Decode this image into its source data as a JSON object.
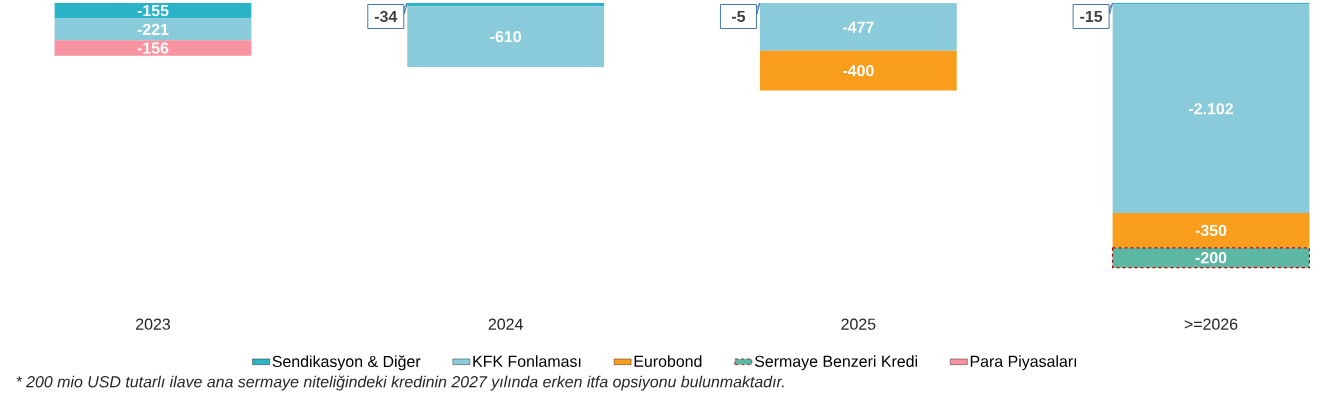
{
  "chart_data": {
    "type": "bar",
    "stacked": true,
    "legend": "bottom",
    "tick_labels": "x",
    "categories": [
      "2023",
      "2024",
      "2025",
      ">=2026"
    ],
    "series": [
      {
        "name": "Sendikasyon & Diğer",
        "color": "#2bb3c7",
        "values": [
          -155,
          -34,
          -5,
          -15
        ],
        "value_labels": [
          "-155",
          "-34",
          "-5",
          "-15"
        ]
      },
      {
        "name": "KFK Fonlaması",
        "color": "#8acbdb",
        "values": [
          -221,
          -610,
          -477,
          -2102
        ],
        "value_labels": [
          "-221",
          "-610",
          "-477",
          "-2.102"
        ]
      },
      {
        "name": "Eurobond",
        "color": "#f99d1c",
        "values": [
          null,
          null,
          -400,
          -350
        ],
        "value_labels": [
          null,
          null,
          "-400",
          "-350"
        ]
      },
      {
        "name": "Sermaye Benzeri Kredi",
        "color": "#5db8a3",
        "line_style": "dashed",
        "values": [
          null,
          null,
          null,
          -200
        ],
        "value_labels": [
          null,
          null,
          null,
          "-200"
        ]
      },
      {
        "name": "Para Piyasaları",
        "color": "#f893a1",
        "values": [
          -156,
          null,
          null,
          null
        ],
        "value_labels": [
          "-156",
          null,
          null,
          null
        ]
      }
    ],
    "annotations": [
      "* 200 mio USD tutarlı ilave ana sermaye niteliğindeki kredinin 2027 yılında erken itfa opsiyonu bulunmaktadır."
    ]
  }
}
